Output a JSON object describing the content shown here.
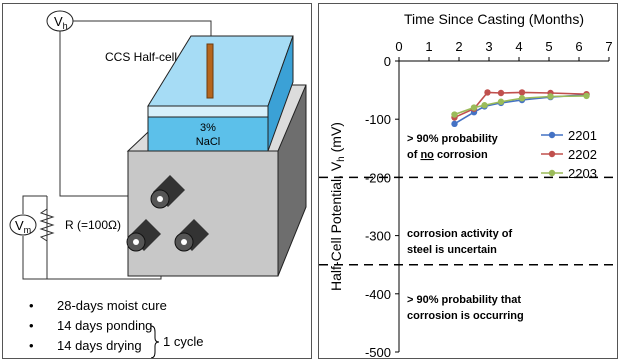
{
  "setup": {
    "meter_h_label": "V",
    "meter_h_sub": "h",
    "meter_m_label": "V",
    "meter_m_sub": "m",
    "halfcell_label": "CCS Half-cell",
    "solution_line1": "3%",
    "solution_line2": "NaCl",
    "resistor_label": "R (=100Ω)",
    "bullets": [
      "28-days moist cure",
      "14 days ponding",
      "14 days drying"
    ],
    "cycle_label": "1 cycle"
  },
  "chart_data": {
    "type": "line",
    "title": "Time Since Casting (Months)",
    "ylabel": "Half-Cell Potential, V",
    "ylabel_sub": "h",
    "ylabel_unit": " (mV)",
    "xlim": [
      0,
      7
    ],
    "ylim": [
      -500,
      0
    ],
    "x_ticks": [
      "0",
      "1",
      "2",
      "3",
      "4",
      "5",
      "6",
      "7"
    ],
    "y_ticks": [
      "0",
      "-100",
      "-200",
      "-300",
      "-400",
      "-500"
    ],
    "legend_position": "right",
    "series": [
      {
        "name": "2201",
        "color": "#4472c4",
        "x": [
          1.85,
          2.5,
          2.85,
          3.4,
          4.1,
          5.05,
          6.25
        ],
        "y": [
          -108,
          -88,
          -78,
          -72,
          -67,
          -62,
          -58
        ]
      },
      {
        "name": "2202",
        "color": "#c0504d",
        "x": [
          1.85,
          2.5,
          2.95,
          3.4,
          4.1,
          5.05,
          6.25
        ],
        "y": [
          -97,
          -82,
          -54,
          -55,
          -54,
          -55,
          -57
        ]
      },
      {
        "name": "2203",
        "color": "#9bbb59",
        "x": [
          1.85,
          2.5,
          2.85,
          3.4,
          4.1,
          5.05,
          6.25
        ],
        "y": [
          -92,
          -80,
          -76,
          -70,
          -64,
          -61,
          -60
        ]
      }
    ],
    "thresholds": [
      -200,
      -350
    ],
    "zones": [
      {
        "line1": "> 90% probability",
        "line2": "of no corrosion",
        "underline": "no"
      },
      {
        "line1": "corrosion activity of",
        "line2": "steel is uncertain"
      },
      {
        "line1": "> 90% probability that",
        "line2": "corrosion is occurring"
      }
    ]
  }
}
